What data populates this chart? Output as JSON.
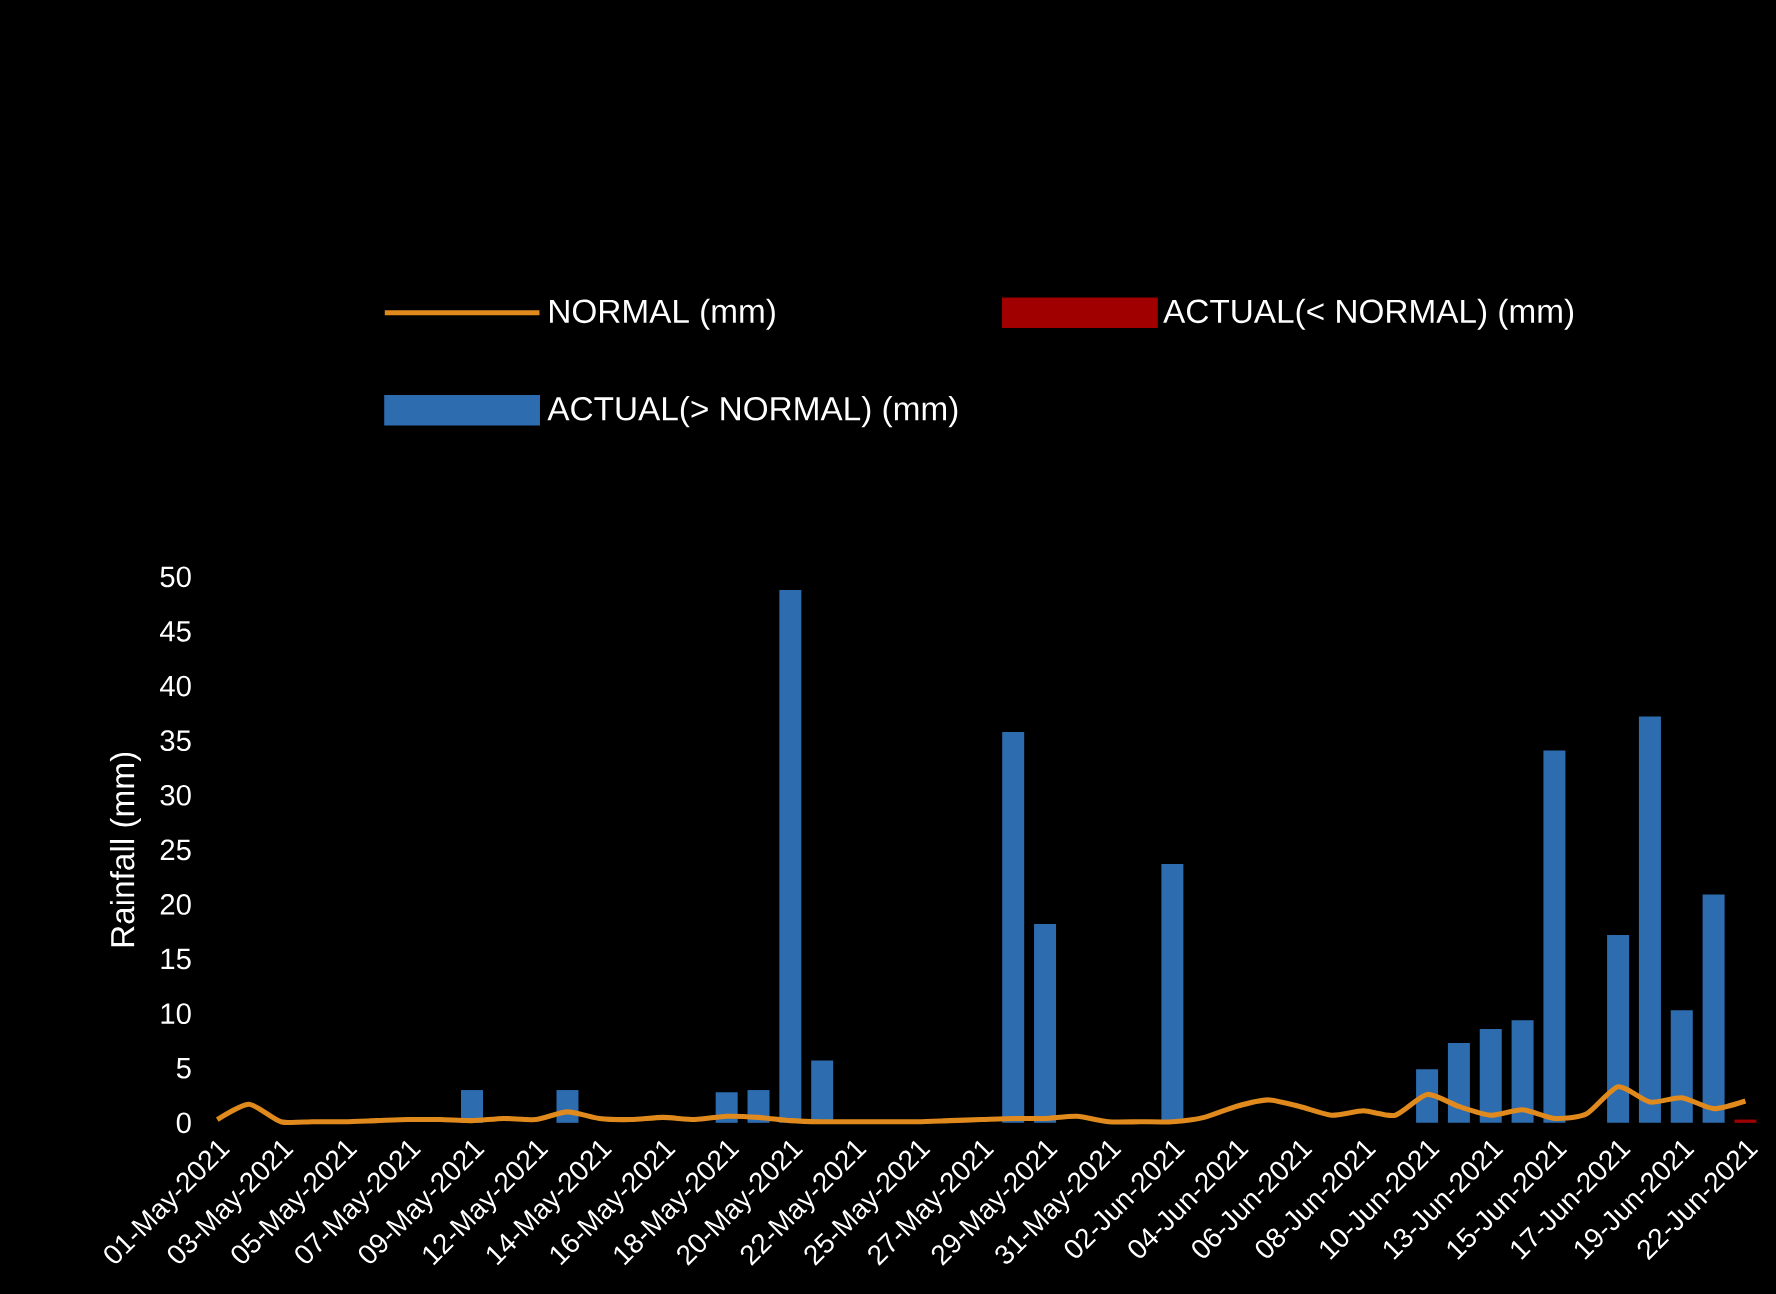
{
  "chart_data": {
    "type": "bar",
    "ylabel": "Rainfall (mm)",
    "categories": [
      "01-May-2021",
      null,
      "03-May-2021",
      null,
      "05-May-2021",
      null,
      "07-May-2021",
      null,
      "09-May-2021",
      null,
      "12-May-2021",
      null,
      "14-May-2021",
      null,
      "16-May-2021",
      null,
      "18-May-2021",
      null,
      "20-May-2021",
      null,
      "22-May-2021",
      null,
      "25-May-2021",
      null,
      "27-May-2021",
      null,
      "29-May-2021",
      null,
      "31-May-2021",
      null,
      "02-Jun-2021",
      null,
      "04-Jun-2021",
      null,
      "06-Jun-2021",
      null,
      "08-Jun-2021",
      null,
      "10-Jun-2021",
      null,
      "13-Jun-2021",
      null,
      "15-Jun-2021",
      null,
      "17-Jun-2021",
      null,
      "19-Jun-2021",
      null,
      "22-Jun-2021"
    ],
    "series": [
      {
        "name": "NORMAL (mm)",
        "type": "line",
        "color": "#e08a1e",
        "values": [
          0.3,
          1.7,
          0.1,
          0.1,
          0.1,
          0.2,
          0.3,
          0.3,
          0.2,
          0.4,
          0.3,
          1.0,
          0.4,
          0.3,
          0.5,
          0.3,
          0.6,
          0.5,
          0.2,
          0.1,
          0.1,
          0.1,
          0.1,
          0.2,
          0.3,
          0.4,
          0.4,
          0.6,
          0.1,
          0.1,
          0.1,
          0.5,
          1.5,
          2.1,
          1.5,
          0.7,
          1.1,
          0.7,
          2.6,
          1.5,
          0.7,
          1.2,
          0.4,
          0.8,
          3.3,
          1.9,
          2.3,
          1.3,
          2.0
        ]
      },
      {
        "name": "ACTUAL(< NORMAL) (mm)",
        "color": "#a00000",
        "values": [
          null,
          null,
          null,
          null,
          null,
          null,
          null,
          null,
          null,
          null,
          null,
          null,
          null,
          null,
          null,
          null,
          null,
          null,
          null,
          null,
          null,
          null,
          null,
          null,
          null,
          null,
          null,
          null,
          null,
          null,
          null,
          null,
          null,
          null,
          null,
          null,
          null,
          null,
          null,
          null,
          null,
          null,
          null,
          null,
          null,
          null,
          null,
          null,
          0.3
        ]
      },
      {
        "name": "ACTUAL(> NORMAL) (mm)",
        "color": "#2e6cb0",
        "values": [
          null,
          null,
          null,
          null,
          null,
          null,
          null,
          null,
          3,
          null,
          null,
          3,
          null,
          null,
          null,
          null,
          2.8,
          3,
          48.8,
          5.7,
          null,
          null,
          null,
          null,
          null,
          35.8,
          18.2,
          null,
          null,
          null,
          23.7,
          null,
          null,
          null,
          null,
          null,
          null,
          null,
          4.9,
          7.3,
          8.6,
          9.4,
          34.1,
          null,
          17.2,
          37.2,
          10.3,
          20.9,
          null
        ]
      }
    ],
    "ylim": [
      0,
      50
    ],
    "yticks": [
      0,
      5,
      10,
      15,
      20,
      25,
      30,
      35,
      40,
      45,
      50
    ],
    "legend": "top"
  }
}
